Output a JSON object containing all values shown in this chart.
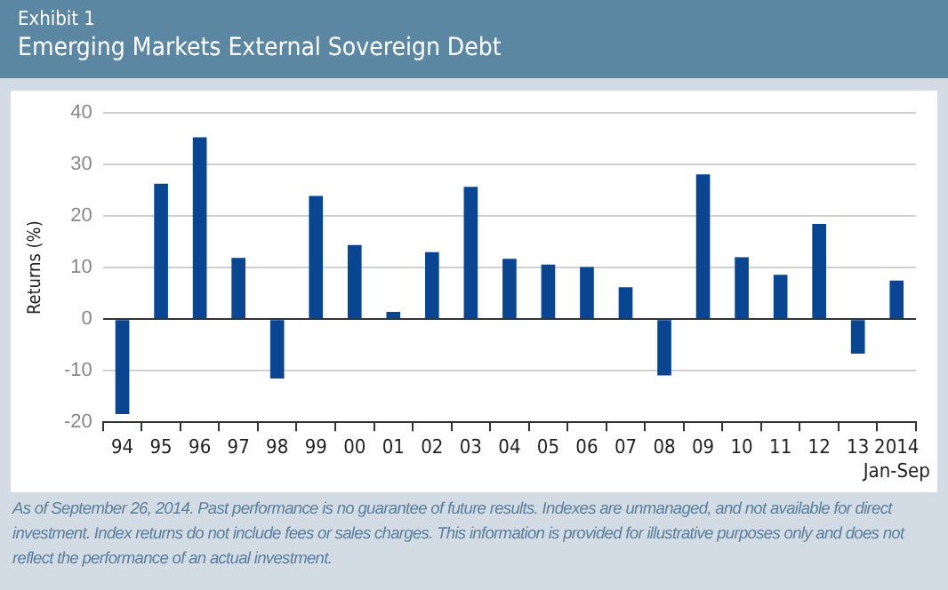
{
  "chart_data": {
    "type": "bar",
    "title": "Exhibit 1",
    "subtitle": "Emerging Markets External Sovereign Debt",
    "ylabel": "Returns (%)",
    "categories": [
      "94",
      "95",
      "96",
      "97",
      "98",
      "99",
      "00",
      "01",
      "02",
      "03",
      "04",
      "05",
      "06",
      "07",
      "08",
      "09",
      "10",
      "11",
      "12",
      "13",
      "2014\nJan-Sep"
    ],
    "values": [
      -18.4,
      26.3,
      35.3,
      11.9,
      -11.5,
      23.9,
      14.4,
      1.4,
      13.0,
      25.7,
      11.7,
      10.6,
      10.1,
      6.2,
      -10.9,
      28.1,
      12.0,
      8.6,
      18.5,
      -6.7,
      7.5
    ],
    "color": "#0a4591",
    "ylim": [
      -20,
      40
    ],
    "yticks": [
      -20,
      -10,
      0,
      10,
      20,
      30,
      40
    ],
    "grid": "y",
    "legend": false,
    "annotations": [
      "As of September 26, 2014. Past performance is no guarantee of future results. Indexes are unmanaged, and not available for direct investment. Index returns do not include fees or sales charges. This information is provided for illustrative purposes only and does not reflect the performance of an actual investment."
    ]
  }
}
